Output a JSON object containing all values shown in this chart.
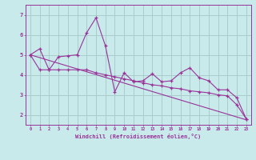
{
  "background_color": "#c8eaea",
  "grid_color": "#aacccc",
  "line_color": "#993399",
  "xlabel": "Windchill (Refroidissement éolien,°C)",
  "xlim": [
    -0.5,
    23.5
  ],
  "ylim": [
    1.5,
    7.5
  ],
  "xticks": [
    0,
    1,
    2,
    3,
    4,
    5,
    6,
    7,
    8,
    9,
    10,
    11,
    12,
    13,
    14,
    15,
    16,
    17,
    18,
    19,
    20,
    21,
    22,
    23
  ],
  "yticks": [
    2,
    3,
    4,
    5,
    6,
    7
  ],
  "series1_x": [
    0,
    1,
    2,
    3,
    4,
    5,
    6,
    7,
    8,
    9,
    10,
    11,
    12,
    13,
    14,
    15,
    16,
    17,
    18,
    19,
    20,
    21,
    22,
    23
  ],
  "series1_y": [
    5.0,
    5.3,
    4.25,
    4.9,
    4.95,
    5.0,
    6.1,
    6.85,
    5.45,
    3.15,
    4.1,
    3.65,
    3.7,
    4.05,
    3.65,
    3.7,
    4.1,
    4.35,
    3.85,
    3.7,
    3.25,
    3.25,
    2.85,
    1.8
  ],
  "series2_x": [
    0,
    1,
    2,
    3,
    4,
    5,
    6,
    7,
    8,
    9,
    10,
    11,
    12,
    13,
    14,
    15,
    16,
    17,
    18,
    19,
    20,
    21,
    22,
    23
  ],
  "series2_y": [
    5.0,
    4.25,
    4.25,
    4.25,
    4.25,
    4.25,
    4.25,
    4.1,
    4.0,
    3.9,
    3.8,
    3.7,
    3.6,
    3.5,
    3.45,
    3.35,
    3.3,
    3.2,
    3.15,
    3.1,
    3.0,
    2.95,
    2.5,
    1.8
  ],
  "series3_x": [
    0,
    23
  ],
  "series3_y": [
    5.0,
    1.75
  ]
}
